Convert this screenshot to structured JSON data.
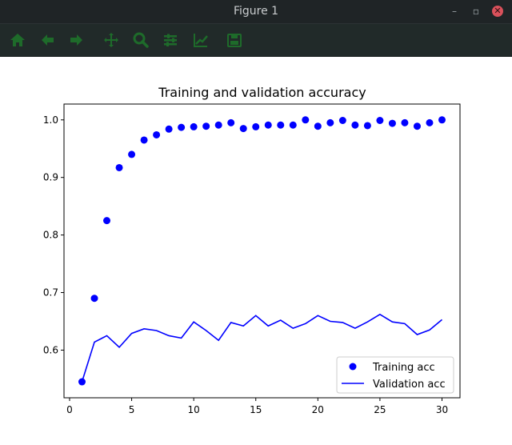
{
  "window": {
    "title": "Figure 1"
  },
  "toolbar": {
    "buttons": [
      {
        "name": "home-icon"
      },
      {
        "name": "back-arrow-icon"
      },
      {
        "name": "forward-arrow-icon"
      },
      {
        "name": "pan-icon"
      },
      {
        "name": "zoom-icon"
      },
      {
        "name": "configure-subplots-icon"
      },
      {
        "name": "edit-axis-icon"
      },
      {
        "name": "save-icon"
      }
    ],
    "icon_color": "#1e6b2a"
  },
  "chart_data": {
    "type": "line",
    "title": "Training and validation accuracy",
    "xlabel": "",
    "ylabel": "",
    "xlim": [
      -0.45,
      31.45
    ],
    "ylim": [
      0.5172,
      1.0275
    ],
    "xticks": [
      0,
      5,
      10,
      15,
      20,
      25,
      30
    ],
    "yticks": [
      0.6,
      0.7,
      0.8,
      0.9,
      1.0
    ],
    "ytick_labels": [
      "0.6",
      "0.7",
      "0.8",
      "0.9",
      "1.0"
    ],
    "legend_position": "lower-right",
    "series": [
      {
        "name": "Training acc",
        "style": "markers",
        "color": "#0000ff",
        "x": [
          1,
          2,
          3,
          4,
          5,
          6,
          7,
          8,
          9,
          10,
          11,
          12,
          13,
          14,
          15,
          16,
          17,
          18,
          19,
          20,
          21,
          22,
          23,
          24,
          25,
          26,
          27,
          28,
          29,
          30
        ],
        "values": [
          0.545,
          0.69,
          0.825,
          0.917,
          0.94,
          0.965,
          0.974,
          0.984,
          0.987,
          0.988,
          0.989,
          0.991,
          0.995,
          0.985,
          0.988,
          0.991,
          0.991,
          0.991,
          1.0,
          0.989,
          0.995,
          0.999,
          0.991,
          0.99,
          0.999,
          0.994,
          0.995,
          0.989,
          0.995,
          1.0
        ]
      },
      {
        "name": "Validation acc",
        "style": "line",
        "color": "#0000ff",
        "x": [
          1,
          2,
          3,
          4,
          5,
          6,
          7,
          8,
          9,
          10,
          11,
          12,
          13,
          14,
          15,
          16,
          17,
          18,
          19,
          20,
          21,
          22,
          23,
          24,
          25,
          26,
          27,
          28,
          29,
          30
        ],
        "values": [
          0.545,
          0.614,
          0.625,
          0.605,
          0.629,
          0.637,
          0.634,
          0.625,
          0.621,
          0.649,
          0.634,
          0.617,
          0.648,
          0.642,
          0.66,
          0.642,
          0.652,
          0.638,
          0.646,
          0.66,
          0.65,
          0.648,
          0.638,
          0.649,
          0.662,
          0.649,
          0.646,
          0.627,
          0.635,
          0.653
        ]
      }
    ]
  }
}
